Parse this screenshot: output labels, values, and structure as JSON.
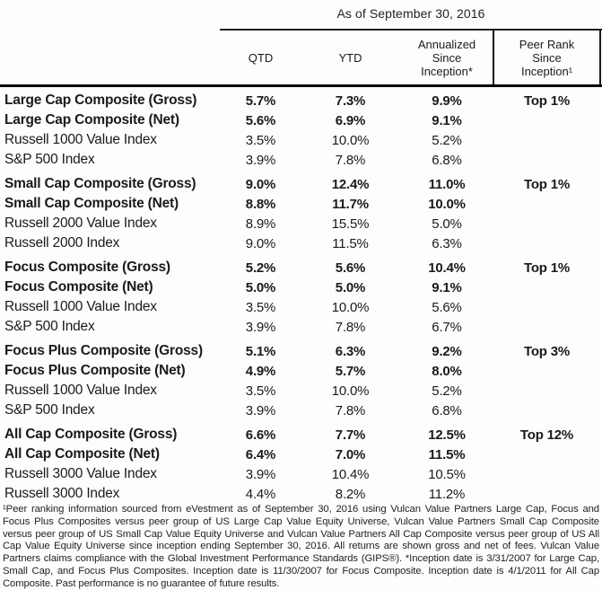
{
  "title": "As of September 30, 2016",
  "table": {
    "header": {
      "qtd": "QTD",
      "ytd": "YTD",
      "since_inception": "Annualized\nSince\nInception*",
      "peer_rank": "Peer Rank\nSince\nInception¹"
    },
    "groups": [
      {
        "name": "Large Cap",
        "rows": [
          {
            "label": "Large Cap Composite (Gross)",
            "qtd": "5.7%",
            "ytd": "7.3%",
            "since_inception": "9.9%",
            "peer_rank": "Top 1%",
            "bold": true
          },
          {
            "label": "Large Cap Composite (Net)",
            "qtd": "5.6%",
            "ytd": "6.9%",
            "since_inception": "9.1%",
            "peer_rank": "",
            "bold": true
          },
          {
            "label": "Russell 1000 Value Index",
            "qtd": "3.5%",
            "ytd": "10.0%",
            "since_inception": "5.2%",
            "peer_rank": "",
            "bold": false
          },
          {
            "label": "S&P 500 Index",
            "qtd": "3.9%",
            "ytd": "7.8%",
            "since_inception": "6.8%",
            "peer_rank": "",
            "bold": false
          }
        ]
      },
      {
        "name": "Small Cap",
        "rows": [
          {
            "label": "Small Cap Composite (Gross)",
            "qtd": "9.0%",
            "ytd": "12.4%",
            "since_inception": "11.0%",
            "peer_rank": "Top 1%",
            "bold": true
          },
          {
            "label": "Small Cap Composite (Net)",
            "qtd": "8.8%",
            "ytd": "11.7%",
            "since_inception": "10.0%",
            "peer_rank": "",
            "bold": true
          },
          {
            "label": "Russell 2000 Value Index",
            "qtd": "8.9%",
            "ytd": "15.5%",
            "since_inception": "5.0%",
            "peer_rank": "",
            "bold": false
          },
          {
            "label": "Russell 2000 Index",
            "qtd": "9.0%",
            "ytd": "11.5%",
            "since_inception": "6.3%",
            "peer_rank": "",
            "bold": false
          }
        ]
      },
      {
        "name": "Focus",
        "rows": [
          {
            "label": "Focus Composite (Gross)",
            "qtd": "5.2%",
            "ytd": "5.6%",
            "since_inception": "10.4%",
            "peer_rank": "Top 1%",
            "bold": true
          },
          {
            "label": "Focus Composite (Net)",
            "qtd": "5.0%",
            "ytd": "5.0%",
            "since_inception": "9.1%",
            "peer_rank": "",
            "bold": true
          },
          {
            "label": "Russell 1000 Value Index",
            "qtd": "3.5%",
            "ytd": "10.0%",
            "since_inception": "5.6%",
            "peer_rank": "",
            "bold": false
          },
          {
            "label": "S&P 500 Index",
            "qtd": "3.9%",
            "ytd": "7.8%",
            "since_inception": "6.7%",
            "peer_rank": "",
            "bold": false
          }
        ]
      },
      {
        "name": "Focus Plus",
        "rows": [
          {
            "label": "Focus Plus Composite (Gross)",
            "qtd": "5.1%",
            "ytd": "6.3%",
            "since_inception": "9.2%",
            "peer_rank": "Top 3%",
            "bold": true
          },
          {
            "label": "Focus Plus Composite (Net)",
            "qtd": "4.9%",
            "ytd": "5.7%",
            "since_inception": "8.0%",
            "peer_rank": "",
            "bold": true
          },
          {
            "label": "Russell 1000 Value Index",
            "qtd": "3.5%",
            "ytd": "10.0%",
            "since_inception": "5.2%",
            "peer_rank": "",
            "bold": false
          },
          {
            "label": "S&P 500 Index",
            "qtd": "3.9%",
            "ytd": "7.8%",
            "since_inception": "6.8%",
            "peer_rank": "",
            "bold": false
          }
        ]
      },
      {
        "name": "All Cap",
        "rows": [
          {
            "label": "All Cap Composite (Gross)",
            "qtd": "6.6%",
            "ytd": "7.7%",
            "since_inception": "12.5%",
            "peer_rank": "Top 12%",
            "bold": true
          },
          {
            "label": "All Cap Composite (Net)",
            "qtd": "6.4%",
            "ytd": "7.0%",
            "since_inception": "11.5%",
            "peer_rank": "",
            "bold": true
          },
          {
            "label": "Russell 3000 Value Index",
            "qtd": "3.9%",
            "ytd": "10.4%",
            "since_inception": "10.5%",
            "peer_rank": "",
            "bold": false
          },
          {
            "label": "Russell 3000 Index",
            "qtd": "4.4%",
            "ytd": "8.2%",
            "since_inception": "11.2%",
            "peer_rank": "",
            "bold": false
          }
        ]
      }
    ]
  },
  "footnote": "¹Peer ranking information sourced from eVestment as of September 30, 2016 using Vulcan Value Partners Large Cap, Focus and Focus Plus Composites versus peer group of US Large Cap Value Equity Universe, Vulcan Value Partners Small Cap Composite versus peer group of US Small Cap Value Equity Universe and Vulcan Value Partners All Cap Composite versus peer group of US All Cap Value Equity Universe since inception ending September 30, 2016.  All returns are shown gross and net of fees.  Vulcan Value Partners claims compliance with the Global Investment Performance Standards (GIPS®).  *Inception date is 3/31/2007 for Large Cap, Small Cap, and Focus Plus Composites.  Inception date is 11/30/2007 for Focus Composite.  Inception date is 4/1/2011 for All Cap Composite.  Past performance is no guarantee of future results.",
  "colors": {
    "text": "#1a1a1a",
    "rule": "#000000",
    "background": "#fdfdfd"
  }
}
